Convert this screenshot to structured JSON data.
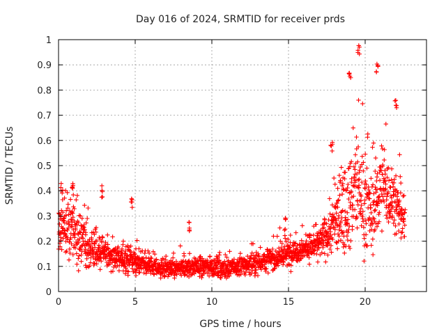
{
  "chart_data": {
    "type": "scatter",
    "title": "Day 016 of 2024, SRMTID for receiver prds",
    "xlabel": "GPS time / hours",
    "ylabel": "SRMTID / TECUs",
    "xlim": [
      0,
      24
    ],
    "ylim": [
      0,
      1
    ],
    "x_ticks": [
      0,
      5,
      10,
      15,
      20
    ],
    "x_tick_labels": [
      "0",
      "5",
      "10",
      "15",
      "20"
    ],
    "y_ticks": [
      0,
      0.1,
      0.2,
      0.3,
      0.4,
      0.5,
      0.6,
      0.7,
      0.8,
      0.9,
      1
    ],
    "y_tick_labels": [
      "0",
      "0.1",
      "0.2",
      "0.3",
      "0.4",
      "0.5",
      "0.6",
      "0.7",
      "0.8",
      "0.9",
      "1"
    ],
    "grid": true,
    "marker": "+",
    "marker_color": "#ff0000",
    "x_data_range": [
      0,
      22.6
    ],
    "profile_hours": [
      0,
      0.5,
      1,
      1.5,
      2,
      3,
      4,
      5,
      6,
      7,
      8,
      9,
      10,
      11,
      12,
      13,
      14,
      15,
      16,
      17,
      17.5,
      18,
      18.5,
      19,
      19.5,
      20,
      20.5,
      21,
      21.5,
      22,
      22.6
    ],
    "profile_center": [
      0.24,
      0.25,
      0.24,
      0.2,
      0.16,
      0.15,
      0.13,
      0.12,
      0.1,
      0.09,
      0.09,
      0.1,
      0.1,
      0.09,
      0.1,
      0.12,
      0.13,
      0.15,
      0.17,
      0.19,
      0.22,
      0.27,
      0.32,
      0.36,
      0.42,
      0.35,
      0.3,
      0.43,
      0.4,
      0.35,
      0.27
    ],
    "profile_spread": [
      0.09,
      0.1,
      0.1,
      0.08,
      0.06,
      0.05,
      0.045,
      0.045,
      0.035,
      0.03,
      0.035,
      0.035,
      0.035,
      0.035,
      0.035,
      0.04,
      0.04,
      0.045,
      0.04,
      0.05,
      0.08,
      0.12,
      0.14,
      0.16,
      0.2,
      0.16,
      0.14,
      0.15,
      0.14,
      0.12,
      0.07
    ],
    "peaks": [
      {
        "x": 0.2,
        "y": 0.44
      },
      {
        "x": 0.9,
        "y": 0.43
      },
      {
        "x": 2.8,
        "y": 0.43
      },
      {
        "x": 4.8,
        "y": 0.37
      },
      {
        "x": 8.5,
        "y": 0.28
      },
      {
        "x": 14.8,
        "y": 0.3
      },
      {
        "x": 17.8,
        "y": 0.6
      },
      {
        "x": 19.0,
        "y": 0.88
      },
      {
        "x": 19.6,
        "y": 0.99
      },
      {
        "x": 20.8,
        "y": 0.91
      },
      {
        "x": 22.0,
        "y": 0.78
      }
    ]
  }
}
